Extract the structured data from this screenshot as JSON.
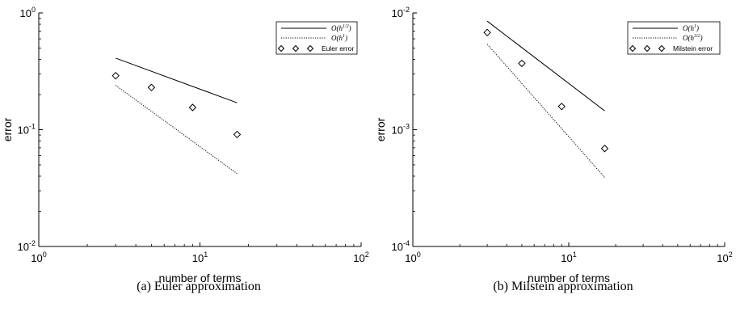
{
  "chart_data": [
    {
      "type": "line",
      "caption": "(a) Euler approximation",
      "xlabel": "number of terms",
      "ylabel": "error",
      "xscale": "log",
      "yscale": "log",
      "xlim": [
        1,
        100
      ],
      "ylim": [
        0.01,
        1
      ],
      "x_ticks": [
        {
          "base": "10",
          "exp": "0"
        },
        {
          "base": "10",
          "exp": "1"
        },
        {
          "base": "10",
          "exp": "2"
        }
      ],
      "y_ticks": [
        {
          "base": "10",
          "exp": "-2"
        },
        {
          "base": "10",
          "exp": "-1"
        },
        {
          "base": "10",
          "exp": "0"
        }
      ],
      "legend_position": "top-right",
      "series": [
        {
          "name": "O(h^{1/2})",
          "label_main": "O(h",
          "label_sup": "1/2",
          "label_end": ")",
          "style": "solid",
          "x": [
            3,
            17
          ],
          "y": [
            0.41,
            0.17
          ]
        },
        {
          "name": "O(h^{1})",
          "label_main": "O(h",
          "label_sup": "1",
          "label_end": ")",
          "style": "dotted",
          "x": [
            3,
            17
          ],
          "y": [
            0.24,
            0.042
          ]
        },
        {
          "name": "Euler error",
          "label_main": "Euler error",
          "label_sup": "",
          "label_end": "",
          "style": "diamond",
          "x": [
            3,
            5,
            9,
            17
          ],
          "y": [
            0.29,
            0.23,
            0.155,
            0.091
          ]
        }
      ]
    },
    {
      "type": "line",
      "caption": "(b) Milstein approximation",
      "xlabel": "number of terms",
      "ylabel": "error",
      "xscale": "log",
      "yscale": "log",
      "xlim": [
        1,
        100
      ],
      "ylim": [
        0.0001,
        0.01
      ],
      "x_ticks": [
        {
          "base": "10",
          "exp": "0"
        },
        {
          "base": "10",
          "exp": "1"
        },
        {
          "base": "10",
          "exp": "2"
        }
      ],
      "y_ticks": [
        {
          "base": "10",
          "exp": "-4"
        },
        {
          "base": "10",
          "exp": "-3"
        },
        {
          "base": "10",
          "exp": "-2"
        }
      ],
      "legend_position": "top-right",
      "series": [
        {
          "name": "O(h^{1})",
          "label_main": "O(h",
          "label_sup": "1",
          "label_end": ")",
          "style": "solid",
          "x": [
            3,
            17
          ],
          "y": [
            0.0085,
            0.00145
          ]
        },
        {
          "name": "O(h^{3/2})",
          "label_main": "O(h",
          "label_sup": "3/2",
          "label_end": ")",
          "style": "dotted",
          "x": [
            3,
            17
          ],
          "y": [
            0.0054,
            0.00039
          ]
        },
        {
          "name": "Milstein error",
          "label_main": "Milstein error",
          "label_sup": "",
          "label_end": "",
          "style": "diamond",
          "x": [
            3,
            5,
            9,
            17
          ],
          "y": [
            0.0068,
            0.0037,
            0.00158,
            0.00069
          ]
        }
      ]
    }
  ]
}
